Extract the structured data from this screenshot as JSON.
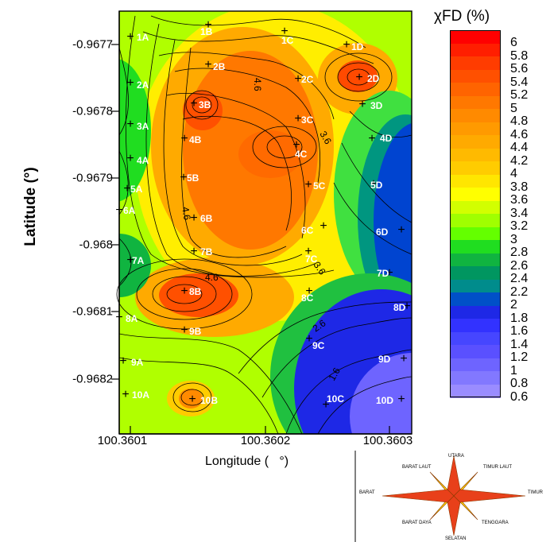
{
  "chart_data": {
    "type": "heatmap",
    "title": "",
    "xlabel": "Longitude (   °)",
    "ylabel": "Latitude (°)",
    "x_ticks": [
      "100.3601",
      "100.3602",
      "100.3603"
    ],
    "y_ticks": [
      "-0.9677",
      "-0.9678",
      "-0.9679",
      "-0.968",
      "-0.9681",
      "-0.9682"
    ],
    "colorbar": {
      "title": "χFD (%)",
      "ticks": [
        "6",
        "5.8",
        "5.6",
        "5.4",
        "5.2",
        "5",
        "4.8",
        "4.6",
        "4.4",
        "4.2",
        "4",
        "3.8",
        "3.6",
        "3.4",
        "3.2",
        "3",
        "2.8",
        "2.6",
        "2.4",
        "2.2",
        "2",
        "1.8",
        "1.6",
        "1.4",
        "1.2",
        "1",
        "0.8",
        "0.6"
      ],
      "colors": [
        "#ff0000",
        "#ff1e00",
        "#ff3c00",
        "#ff5000",
        "#ff6400",
        "#ff7800",
        "#ff8a00",
        "#ff9a00",
        "#ffaa00",
        "#ffba00",
        "#ffcc00",
        "#ffe600",
        "#ffff00",
        "#d2ff00",
        "#a0ff00",
        "#64ff00",
        "#20dd20",
        "#10b440",
        "#009660",
        "#008c8c",
        "#0050c8",
        "#1e28e6",
        "#3232ff",
        "#4646ff",
        "#5a50ff",
        "#6e64ff",
        "#8278ff",
        "#9a8cff"
      ],
      "min": 0.6,
      "max": 6
    },
    "contour_labels": [
      "4.6",
      "3.6",
      "4.6",
      "4.6",
      "3.6",
      "2.6",
      "1.6"
    ],
    "stations": [
      "1A",
      "1B",
      "1C",
      "1D",
      "2A",
      "2B",
      "2C",
      "2D",
      "3A",
      "3B",
      "3C",
      "3D",
      "4A",
      "4B",
      "4C",
      "4D",
      "5A",
      "5B",
      "5C",
      "5D",
      "6A",
      "6B",
      "6C",
      "6D",
      "7A",
      "7B",
      "7C",
      "7D",
      "8A",
      "8B",
      "8C",
      "8D",
      "9A",
      "9B",
      "9C",
      "9D",
      "10A",
      "10B",
      "10C",
      "10D"
    ]
  },
  "compass": {
    "labels": [
      "UTARA",
      "TIMUR LAUT",
      "TIMUR",
      "TENGGARA",
      "SELATAN",
      "BARAT DAYA",
      "BARAT",
      "BARAT LAUT"
    ]
  }
}
